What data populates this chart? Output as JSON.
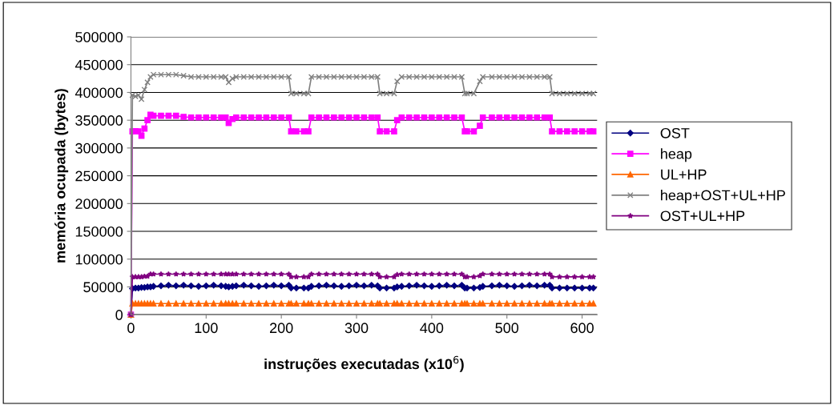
{
  "chart_data": {
    "type": "line",
    "xlabel": "instruções executadas (x10$^{6}$)",
    "ylabel": "memória ocupada (bytes)",
    "x": [
      0,
      2,
      6,
      10,
      14,
      18,
      22,
      26,
      30,
      40,
      50,
      60,
      70,
      80,
      90,
      100,
      110,
      120,
      126,
      130,
      135,
      140,
      150,
      160,
      170,
      180,
      190,
      200,
      210,
      213,
      220,
      230,
      236,
      240,
      250,
      260,
      270,
      280,
      290,
      300,
      310,
      320,
      328,
      331,
      340,
      350,
      354,
      360,
      370,
      380,
      390,
      400,
      410,
      420,
      430,
      440,
      444,
      447,
      456,
      464,
      468,
      480,
      490,
      500,
      510,
      520,
      530,
      540,
      550,
      557,
      560,
      570,
      580,
      590,
      600,
      610,
      615
    ],
    "series": [
      {
        "name": "OST",
        "color": "#000080",
        "marker": "diamond",
        "values": [
          0,
          47000,
          48000,
          48000,
          49000,
          49000,
          50000,
          50000,
          51000,
          52000,
          53000,
          52000,
          53000,
          52000,
          51000,
          52000,
          53000,
          52000,
          51000,
          50000,
          51000,
          52000,
          53000,
          52000,
          51000,
          52000,
          53000,
          52000,
          53000,
          48000,
          48000,
          48000,
          48000,
          51000,
          52000,
          53000,
          52000,
          51000,
          52000,
          53000,
          52000,
          53000,
          52000,
          48000,
          48000,
          48000,
          50000,
          51000,
          52000,
          53000,
          52000,
          51000,
          52000,
          53000,
          52000,
          53000,
          48000,
          48000,
          48000,
          49000,
          51000,
          52000,
          53000,
          52000,
          51000,
          52000,
          53000,
          52000,
          53000,
          53000,
          48000,
          48000,
          48000,
          48000,
          48000,
          48000,
          48000
        ]
      },
      {
        "name": "heap",
        "color": "#ff00ff",
        "marker": "square",
        "values": [
          0,
          330000,
          330000,
          330000,
          322000,
          335000,
          350000,
          360000,
          358000,
          358000,
          358000,
          358000,
          356000,
          355000,
          355000,
          355000,
          355000,
          355000,
          355000,
          345000,
          352000,
          355000,
          355000,
          355000,
          355000,
          355000,
          355000,
          355000,
          355000,
          330000,
          330000,
          330000,
          330000,
          355000,
          355000,
          355000,
          355000,
          355000,
          355000,
          355000,
          355000,
          355000,
          355000,
          330000,
          330000,
          330000,
          350000,
          355000,
          355000,
          355000,
          355000,
          355000,
          355000,
          355000,
          355000,
          355000,
          330000,
          330000,
          330000,
          340000,
          355000,
          355000,
          355000,
          355000,
          355000,
          355000,
          355000,
          355000,
          355000,
          355000,
          330000,
          330000,
          330000,
          330000,
          330000,
          330000,
          330000
        ]
      },
      {
        "name": "UL+HP",
        "color": "#ff6600",
        "marker": "triangle",
        "values": [
          0,
          20000,
          20000,
          20000,
          20000,
          20000,
          20000,
          20000,
          20000,
          20000,
          20000,
          20000,
          20000,
          20000,
          20000,
          20000,
          20000,
          20000,
          20000,
          20000,
          20000,
          20000,
          20000,
          20000,
          20000,
          20000,
          20000,
          20000,
          20000,
          20000,
          20000,
          20000,
          20000,
          20000,
          20000,
          20000,
          20000,
          20000,
          20000,
          20000,
          20000,
          20000,
          20000,
          20000,
          20000,
          20000,
          20000,
          20000,
          20000,
          20000,
          20000,
          20000,
          20000,
          20000,
          20000,
          20000,
          20000,
          20000,
          20000,
          20000,
          20000,
          20000,
          20000,
          20000,
          20000,
          20000,
          20000,
          20000,
          20000,
          20000,
          20000,
          20000,
          20000,
          20000,
          20000,
          20000,
          20000
        ]
      },
      {
        "name": "heap+OST+UL+HP",
        "color": "#808080",
        "marker": "cross",
        "values": [
          0,
          395000,
          393000,
          395000,
          388000,
          405000,
          418000,
          428000,
          432000,
          432000,
          432000,
          432000,
          430000,
          428000,
          428000,
          428000,
          428000,
          428000,
          428000,
          418000,
          425000,
          428000,
          428000,
          428000,
          428000,
          428000,
          428000,
          428000,
          428000,
          398000,
          398000,
          398000,
          398000,
          428000,
          428000,
          428000,
          428000,
          428000,
          428000,
          428000,
          428000,
          428000,
          428000,
          398000,
          398000,
          398000,
          420000,
          428000,
          428000,
          428000,
          428000,
          428000,
          428000,
          428000,
          428000,
          428000,
          398000,
          398000,
          398000,
          420000,
          428000,
          428000,
          428000,
          428000,
          428000,
          428000,
          428000,
          428000,
          428000,
          428000,
          398000,
          398000,
          398000,
          398000,
          398000,
          398000,
          398000
        ]
      },
      {
        "name": "OST+UL+HP",
        "color": "#800080",
        "marker": "star",
        "values": [
          0,
          68000,
          68000,
          68000,
          68000,
          69000,
          69000,
          73000,
          73000,
          73000,
          73000,
          73000,
          73000,
          73000,
          73000,
          73000,
          73000,
          73000,
          73000,
          73000,
          73000,
          73000,
          73000,
          73000,
          73000,
          73000,
          73000,
          73000,
          73000,
          68000,
          68000,
          68000,
          68000,
          73000,
          73000,
          73000,
          73000,
          73000,
          73000,
          73000,
          73000,
          73000,
          73000,
          68000,
          68000,
          68000,
          72000,
          73000,
          73000,
          73000,
          73000,
          73000,
          73000,
          73000,
          73000,
          73000,
          68000,
          68000,
          68000,
          70000,
          73000,
          73000,
          73000,
          73000,
          73000,
          73000,
          73000,
          73000,
          73000,
          73000,
          68000,
          68000,
          68000,
          68000,
          68000,
          68000,
          68000
        ]
      }
    ],
    "xlim": [
      0,
      620
    ],
    "xticks": [
      0,
      100,
      200,
      300,
      400,
      500,
      600
    ],
    "ylim": [
      0,
      500000
    ],
    "yticks": [
      0,
      50000,
      100000,
      150000,
      200000,
      250000,
      300000,
      350000,
      400000,
      450000,
      500000
    ],
    "grid": "y",
    "legend": "right",
    "line_style": "solid"
  }
}
